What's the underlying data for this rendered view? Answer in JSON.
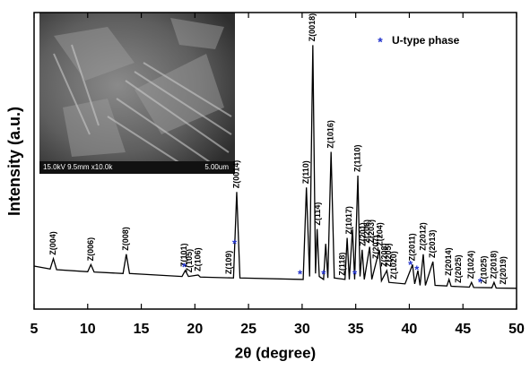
{
  "chart_data": {
    "type": "line",
    "xlabel": "2θ (degree)",
    "ylabel": "Intensity (a.u.)",
    "xlim": [
      5,
      50
    ],
    "xticks": [
      5,
      10,
      15,
      20,
      25,
      30,
      35,
      40,
      45,
      50
    ],
    "ylim": [
      0,
      100
    ],
    "color": "#000000",
    "x": [
      5,
      6.5,
      6.8,
      7.1,
      10.0,
      10.3,
      10.6,
      13.3,
      13.6,
      13.9,
      18.8,
      19.1,
      19.4,
      20.3,
      20.5,
      23.6,
      23.9,
      24.2,
      30.1,
      30.4,
      30.7,
      31.0,
      31.25,
      31.4,
      31.6,
      32.0,
      32.2,
      32.4,
      32.7,
      33.0,
      34.0,
      34.2,
      34.4,
      34.7,
      34.9,
      35.2,
      35.4,
      35.6,
      35.8,
      36.3,
      36.5,
      37.2,
      37.4,
      37.9,
      38.1,
      39.6,
      40.3,
      40.5,
      40.8,
      41.0,
      41.3,
      41.5,
      42.2,
      42.4,
      43.5,
      43.7,
      43.9,
      45.6,
      45.8,
      46.0,
      47.7,
      47.9,
      48.1,
      50
    ],
    "values": [
      14.5,
      13.5,
      17,
      13.3,
      12.6,
      15,
      12.5,
      12,
      18.5,
      12,
      11,
      13,
      11,
      11.5,
      10.8,
      10.5,
      39.5,
      10.5,
      10,
      41,
      11,
      89,
      12,
      27,
      11,
      10,
      22,
      10.5,
      53,
      10.5,
      10,
      24,
      10,
      27,
      10,
      45,
      11,
      20,
      10,
      21,
      10,
      20,
      9.5,
      13,
      9,
      8.5,
      15,
      8.5,
      13,
      8,
      18.5,
      8,
      16,
      8,
      7.8,
      10,
      7.7,
      7.4,
      9,
      7.3,
      7.2,
      9,
      7.1,
      7
    ],
    "peak_labels": [
      {
        "label": "Z(004)",
        "x": 6.8
      },
      {
        "label": "Z(006)",
        "x": 10.3
      },
      {
        "label": "Z(008)",
        "x": 13.6
      },
      {
        "label": "Z(101)",
        "x": 19.0
      },
      {
        "label": "Z(105)",
        "x": 19.5
      },
      {
        "label": "Z(106)",
        "x": 20.3
      },
      {
        "label": "Z(109)",
        "x": 23.2
      },
      {
        "label": "Z(0014)",
        "x": 23.9
      },
      {
        "label": "Z(110)",
        "x": 30.4
      },
      {
        "label": "Z(0018)",
        "x": 31.0
      },
      {
        "label": "Z(114)",
        "x": 31.5
      },
      {
        "label": "Z(1016)",
        "x": 32.7
      },
      {
        "label": "Z(118)",
        "x": 33.8
      },
      {
        "label": "Z(1017)",
        "x": 34.4
      },
      {
        "label": "Z(1110)",
        "x": 35.2
      },
      {
        "label": "Z(201)",
        "x": 35.7
      },
      {
        "label": "Z(206)",
        "x": 36.1
      },
      {
        "label": "Z(203)",
        "x": 36.5
      },
      {
        "label": "Z(207)",
        "x": 36.9
      },
      {
        "label": "Z(204)",
        "x": 37.3
      },
      {
        "label": "Z(208)",
        "x": 37.7
      },
      {
        "label": "Z(205)",
        "x": 38.1
      },
      {
        "label": "Z(1020)",
        "x": 38.6
      },
      {
        "label": "Z(2011)",
        "x": 40.3
      },
      {
        "label": "Z(2012)",
        "x": 41.3
      },
      {
        "label": "Z(2013)",
        "x": 42.2
      },
      {
        "label": "Z(2014)",
        "x": 43.7
      },
      {
        "label": "Z(2025)",
        "x": 44.6
      },
      {
        "label": "Z(1024)",
        "x": 45.8
      },
      {
        "label": "Z(1025)",
        "x": 47.0
      },
      {
        "label": "Z(2018)",
        "x": 47.9
      },
      {
        "label": "Z(2019)",
        "x": 48.8
      }
    ],
    "u_phase": {
      "name": "U-type phase",
      "marker": "*",
      "color": "#2233cc",
      "x": [
        19.0,
        23.7,
        29.8,
        32.0,
        34.9,
        40.1,
        40.7,
        46.6
      ]
    },
    "inset_caption": "15.0kV 9.5mm x10.0k",
    "inset_scale": "5.00um"
  }
}
